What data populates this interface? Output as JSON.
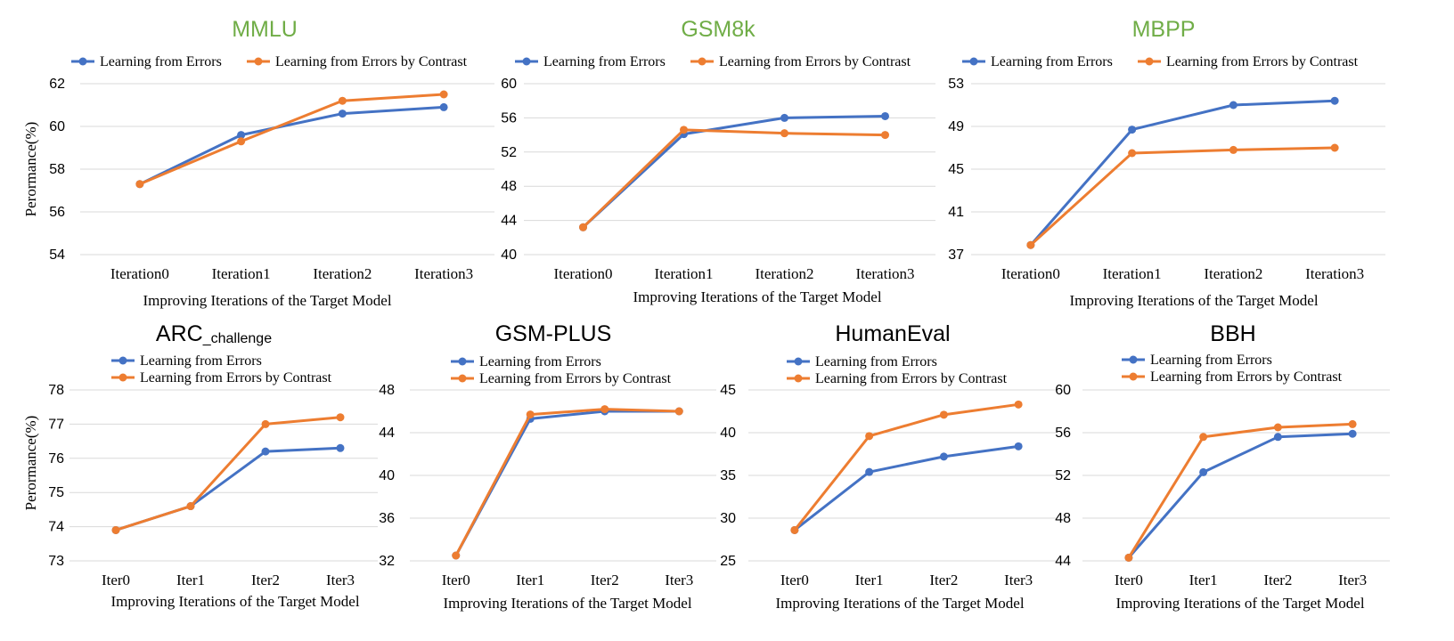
{
  "colors": {
    "series_a": "#4472C4",
    "series_b": "#ED7D31",
    "title_top": "#70AD47",
    "title_bottom": "#000000",
    "grid": "#D9D9D9"
  },
  "chart_data": [
    {
      "type": "line",
      "title": "MMLU",
      "title_color": "green",
      "categories": [
        "Iteration0",
        "Iteration1",
        "Iteration2",
        "Iteration3"
      ],
      "xlabel": "Improving Iterations of the Target Model",
      "ylabel": "Perormance(%)",
      "ylim": [
        54,
        62
      ],
      "yticks": [
        54,
        56,
        58,
        60,
        62
      ],
      "grid": true,
      "legend_position": "top",
      "series": [
        {
          "name": "Learning from Errors",
          "values": [
            57.3,
            59.6,
            60.6,
            60.9
          ]
        },
        {
          "name": "Learning from Errors by Contrast",
          "values": [
            57.3,
            59.3,
            61.2,
            61.5
          ]
        }
      ]
    },
    {
      "type": "line",
      "title": "GSM8k",
      "title_color": "green",
      "categories": [
        "Iteration0",
        "Iteration1",
        "Iteration2",
        "Iteration3"
      ],
      "xlabel": "Improving Iterations of the Target Model",
      "ylabel": "",
      "ylim": [
        40,
        60
      ],
      "yticks": [
        40,
        44,
        48,
        52,
        56,
        60
      ],
      "grid": true,
      "legend_position": "top",
      "series": [
        {
          "name": "Learning from Errors",
          "values": [
            43.2,
            54.1,
            56.0,
            56.2
          ]
        },
        {
          "name": "Learning from Errors by Contrast",
          "values": [
            43.2,
            54.6,
            54.2,
            54.0
          ]
        }
      ]
    },
    {
      "type": "line",
      "title": "MBPP",
      "title_color": "green",
      "categories": [
        "Iteration0",
        "Iteration1",
        "Iteration2",
        "Iteration3"
      ],
      "xlabel": "Improving Iterations of the Target Model",
      "ylabel": "",
      "ylim": [
        37,
        53
      ],
      "yticks": [
        37,
        41,
        45,
        49,
        53
      ],
      "grid": true,
      "legend_position": "top",
      "series": [
        {
          "name": "Learning from Errors",
          "values": [
            37.9,
            48.7,
            51.0,
            51.4
          ]
        },
        {
          "name": "Learning from Errors by Contrast",
          "values": [
            37.9,
            46.5,
            46.8,
            47.0
          ]
        }
      ]
    },
    {
      "type": "line",
      "title": "ARC",
      "title_sub": "_challenge",
      "title_color": "black",
      "categories": [
        "Iter0",
        "Iter1",
        "Iter2",
        "Iter3"
      ],
      "xlabel": "Improving Iterations of the Target Model",
      "ylabel": "Perormance(%)",
      "ylim": [
        73,
        78
      ],
      "yticks": [
        73,
        74,
        75,
        76,
        77,
        78
      ],
      "grid": true,
      "legend_position": "top",
      "series": [
        {
          "name": "Learning from Errors",
          "values": [
            73.9,
            74.6,
            76.2,
            76.3
          ]
        },
        {
          "name": "Learning from Errors by Contrast",
          "values": [
            73.9,
            74.6,
            77.0,
            77.2
          ]
        }
      ]
    },
    {
      "type": "line",
      "title": "GSM-PLUS",
      "title_color": "black",
      "categories": [
        "Iter0",
        "Iter1",
        "Iter2",
        "Iter3"
      ],
      "xlabel": "Improving Iterations of the Target Model",
      "ylabel": "",
      "ylim": [
        32,
        48
      ],
      "yticks": [
        32,
        36,
        40,
        44,
        48
      ],
      "grid": true,
      "legend_position": "top",
      "series": [
        {
          "name": "Learning from Errors",
          "values": [
            32.5,
            45.3,
            46.0,
            46.0
          ]
        },
        {
          "name": "Learning from Errors by Contrast",
          "values": [
            32.5,
            45.7,
            46.2,
            46.0
          ]
        }
      ]
    },
    {
      "type": "line",
      "title": "HumanEval",
      "title_color": "black",
      "categories": [
        "Iter0",
        "Iter1",
        "Iter2",
        "Iter3"
      ],
      "xlabel": "Improving Iterations of the Target Model",
      "ylabel": "",
      "ylim": [
        25,
        45
      ],
      "yticks": [
        25,
        30,
        35,
        40,
        45
      ],
      "grid": true,
      "legend_position": "top",
      "series": [
        {
          "name": "Learning from Errors",
          "values": [
            28.6,
            35.4,
            37.2,
            38.4
          ]
        },
        {
          "name": "Learning from Errors by Contrast",
          "values": [
            28.6,
            39.6,
            42.1,
            43.3
          ]
        }
      ]
    },
    {
      "type": "line",
      "title": "BBH",
      "title_color": "black",
      "categories": [
        "Iter0",
        "Iter1",
        "Iter2",
        "Iter3"
      ],
      "xlabel": "Improving Iterations of the Target Model",
      "ylabel": "",
      "ylim": [
        44,
        60
      ],
      "yticks": [
        44,
        48,
        52,
        56,
        60
      ],
      "grid": true,
      "legend_position": "top",
      "series": [
        {
          "name": "Learning from Errors",
          "values": [
            44.3,
            52.3,
            55.6,
            55.9
          ]
        },
        {
          "name": "Learning from Errors by Contrast",
          "values": [
            44.3,
            55.6,
            56.5,
            56.8
          ]
        }
      ]
    }
  ]
}
